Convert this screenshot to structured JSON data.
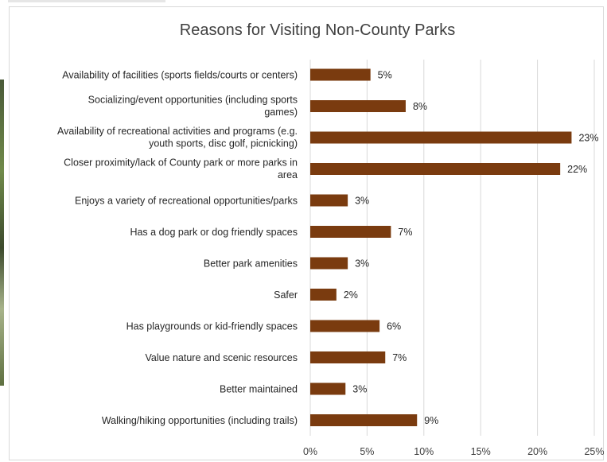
{
  "chart_data": {
    "type": "bar",
    "orientation": "horizontal",
    "title": "Reasons for Visiting Non-County Parks",
    "xlabel": "",
    "ylabel": "",
    "xlim": [
      0,
      25
    ],
    "grid": true,
    "legend": "none",
    "bar_color": "#7a3b0f",
    "categories": [
      [
        "Availability of facilities (sports fields/courts or centers)"
      ],
      [
        "Socializing/event opportunities (including sports",
        "games)"
      ],
      [
        "Availability of recreational activities and programs (e.g.",
        "youth sports, disc golf, picnicking)"
      ],
      [
        "Closer proximity/lack of County park or more parks in",
        "area"
      ],
      [
        "Enjoys a variety of recreational opportunities/parks"
      ],
      [
        "Has a dog park or dog friendly spaces"
      ],
      [
        "Better park amenities"
      ],
      [
        "Safer"
      ],
      [
        "Has playgrounds or kid-friendly spaces"
      ],
      [
        "Value nature and scenic resources"
      ],
      [
        "Better maintained"
      ],
      [
        "Walking/hiking opportunities (including trails)"
      ]
    ],
    "values": [
      5.3,
      8.4,
      23.0,
      22.0,
      3.3,
      7.1,
      3.3,
      2.3,
      6.1,
      6.6,
      3.1,
      9.4
    ],
    "value_labels": [
      "5%",
      "8%",
      "23%",
      "22%",
      "3%",
      "7%",
      "3%",
      "2%",
      "6%",
      "7%",
      "3%",
      "9%"
    ],
    "x_ticks": [
      0,
      5,
      10,
      15,
      20,
      25
    ],
    "x_tick_labels": [
      "0%",
      "5%",
      "10%",
      "15%",
      "20%",
      "25%"
    ]
  }
}
